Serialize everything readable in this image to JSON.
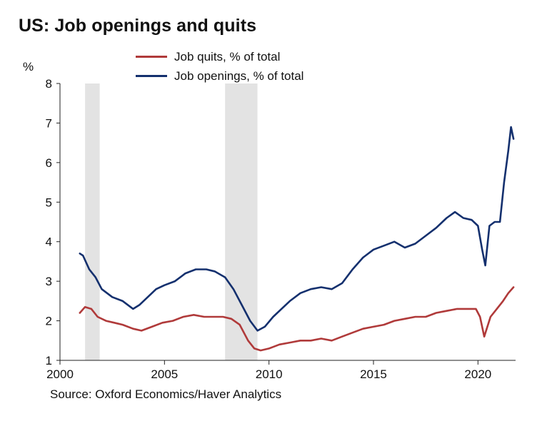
{
  "title": "US: Job openings and quits",
  "unit_label": "%",
  "source": "Source: Oxford Economics/Haver Analytics",
  "chart_data": {
    "type": "line",
    "title": "US: Job openings and quits",
    "ylabel": "%",
    "xlim": [
      2000,
      2021.8
    ],
    "ylim": [
      1,
      8
    ],
    "x_ticks": [
      2000,
      2005,
      2010,
      2015,
      2020
    ],
    "y_ticks": [
      1,
      2,
      3,
      4,
      5,
      6,
      7,
      8
    ],
    "grid": false,
    "legend_placement": "top-center",
    "recession_shading": [
      [
        2001.2,
        2001.9
      ],
      [
        2007.9,
        2009.45
      ]
    ],
    "series": [
      {
        "name": "Job quits, % of total",
        "color": "#b03a3a",
        "x": [
          2000.95,
          2001.2,
          2001.5,
          2001.8,
          2002.2,
          2002.6,
          2003.0,
          2003.5,
          2003.9,
          2004.4,
          2004.9,
          2005.4,
          2005.9,
          2006.4,
          2006.9,
          2007.4,
          2007.8,
          2008.2,
          2008.6,
          2009.0,
          2009.3,
          2009.6,
          2010.0,
          2010.5,
          2011.0,
          2011.5,
          2012.0,
          2012.5,
          2013.0,
          2013.5,
          2014.0,
          2014.5,
          2015.0,
          2015.5,
          2016.0,
          2016.5,
          2017.0,
          2017.5,
          2018.0,
          2018.5,
          2019.0,
          2019.5,
          2019.9,
          2020.1,
          2020.3,
          2020.6,
          2020.9,
          2021.2,
          2021.45,
          2021.7
        ],
        "y": [
          2.2,
          2.35,
          2.3,
          2.1,
          2.0,
          1.95,
          1.9,
          1.8,
          1.75,
          1.85,
          1.95,
          2.0,
          2.1,
          2.15,
          2.1,
          2.1,
          2.1,
          2.05,
          1.9,
          1.5,
          1.3,
          1.25,
          1.3,
          1.4,
          1.45,
          1.5,
          1.5,
          1.55,
          1.5,
          1.6,
          1.7,
          1.8,
          1.85,
          1.9,
          2.0,
          2.05,
          2.1,
          2.1,
          2.2,
          2.25,
          2.3,
          2.3,
          2.3,
          2.1,
          1.6,
          2.1,
          2.3,
          2.5,
          2.7,
          2.85
        ]
      },
      {
        "name": "Job openings, % of total",
        "color": "#14306e",
        "x": [
          2000.95,
          2001.1,
          2001.4,
          2001.7,
          2002.0,
          2002.5,
          2003.0,
          2003.5,
          2003.8,
          2004.2,
          2004.6,
          2005.0,
          2005.5,
          2006.0,
          2006.5,
          2007.0,
          2007.4,
          2007.9,
          2008.3,
          2008.7,
          2009.1,
          2009.45,
          2009.8,
          2010.2,
          2010.6,
          2011.0,
          2011.5,
          2012.0,
          2012.5,
          2013.0,
          2013.5,
          2014.0,
          2014.5,
          2015.0,
          2015.5,
          2016.0,
          2016.5,
          2017.0,
          2017.5,
          2018.0,
          2018.5,
          2018.9,
          2019.3,
          2019.7,
          2020.0,
          2020.2,
          2020.35,
          2020.55,
          2020.8,
          2021.05,
          2021.25,
          2021.45,
          2021.58,
          2021.7
        ],
        "y": [
          3.7,
          3.65,
          3.3,
          3.1,
          2.8,
          2.6,
          2.5,
          2.3,
          2.4,
          2.6,
          2.8,
          2.9,
          3.0,
          3.2,
          3.3,
          3.3,
          3.25,
          3.1,
          2.8,
          2.4,
          2.0,
          1.75,
          1.85,
          2.1,
          2.3,
          2.5,
          2.7,
          2.8,
          2.85,
          2.8,
          2.95,
          3.3,
          3.6,
          3.8,
          3.9,
          4.0,
          3.85,
          3.95,
          4.15,
          4.35,
          4.6,
          4.75,
          4.6,
          4.55,
          4.4,
          3.8,
          3.4,
          4.4,
          4.5,
          4.5,
          5.5,
          6.3,
          6.9,
          6.6
        ]
      }
    ]
  }
}
